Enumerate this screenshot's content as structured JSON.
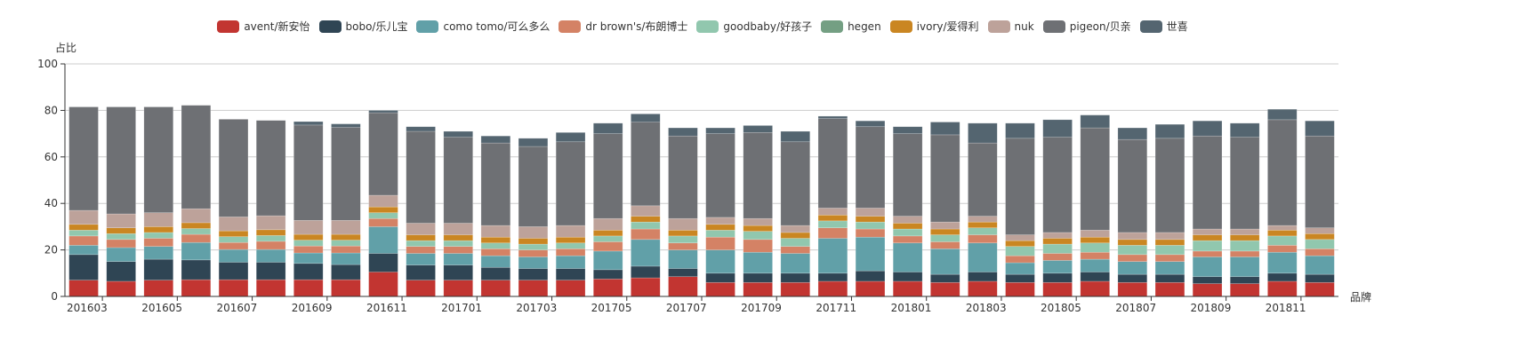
{
  "legend": [
    {
      "name": "avent/新安怡",
      "color": "#c23531"
    },
    {
      "name": "bobo/乐儿宝",
      "color": "#2f4554"
    },
    {
      "name": "como tomo/可么多么",
      "color": "#61a0a8"
    },
    {
      "name": "dr brown's/布朗博士",
      "color": "#d48265"
    },
    {
      "name": "goodbaby/好孩子",
      "color": "#91c7ae"
    },
    {
      "name": "hegen",
      "color": "#749f83"
    },
    {
      "name": "ivory/爱得利",
      "color": "#ca8622"
    },
    {
      "name": "nuk",
      "color": "#bda29a"
    },
    {
      "name": "pigeon/贝亲",
      "color": "#6e7074"
    },
    {
      "name": "世喜",
      "color": "#546570"
    }
  ],
  "chart_data": {
    "type": "bar",
    "stacked": true,
    "title": "",
    "xlabel": "品牌",
    "ylabel": "占比",
    "ylim": [
      0,
      100
    ],
    "yticks": [
      0,
      20,
      40,
      60,
      80,
      100
    ],
    "grid": true,
    "legend_position": "top",
    "xtick_labels_shown": [
      "201603",
      "201605",
      "201607",
      "201609",
      "201611",
      "201701",
      "201703",
      "201705",
      "201707",
      "201709",
      "201711",
      "201801",
      "201803",
      "201805",
      "201807",
      "201809",
      "201811"
    ],
    "categories": [
      "201603",
      "201604",
      "201605",
      "201606",
      "201607",
      "201608",
      "201609",
      "201610",
      "201611",
      "201612",
      "201701",
      "201702",
      "201703",
      "201704",
      "201705",
      "201706",
      "201707",
      "201708",
      "201709",
      "201710",
      "201711",
      "201712",
      "201801",
      "201802",
      "201803",
      "201804",
      "201805",
      "201806",
      "201807",
      "201808",
      "201809",
      "201810",
      "201811",
      "201812"
    ],
    "series": [
      {
        "name": "avent/新安怡",
        "values": [
          7,
          6.5,
          7,
          7.2,
          7.2,
          7.2,
          7.2,
          7.2,
          10.5,
          7,
          7,
          7,
          7,
          7,
          7.5,
          8,
          8.5,
          6,
          6,
          6,
          6.5,
          6.5,
          6.5,
          6,
          6.5,
          6,
          6,
          6.5,
          6,
          6,
          5.5,
          5.5,
          6.5,
          6
        ]
      },
      {
        "name": "bobo/乐儿宝",
        "values": [
          11,
          8.5,
          9,
          8.5,
          7.5,
          7.5,
          7,
          6.5,
          8,
          6.5,
          6.5,
          5.5,
          5,
          5,
          4,
          5,
          3.5,
          4,
          4,
          4,
          3.5,
          4.5,
          4,
          3.5,
          4,
          3.5,
          4,
          4,
          3.5,
          3.5,
          3,
          3,
          3.5,
          3.5
        ]
      },
      {
        "name": "como tomo/可么多么",
        "values": [
          4,
          6,
          5.5,
          7.5,
          5.5,
          5.5,
          4.5,
          5,
          11.5,
          5,
          5,
          5,
          5,
          5.5,
          8,
          11.5,
          8,
          10,
          9,
          8.5,
          15,
          14.5,
          12.5,
          11,
          12.5,
          5,
          5.5,
          5.5,
          5.5,
          5.5,
          8.5,
          8.5,
          9,
          8
        ]
      },
      {
        "name": "dr brown's/布朗博士",
        "values": [
          4,
          3.5,
          3.5,
          3.5,
          3,
          3.5,
          3,
          3,
          3.5,
          3,
          3,
          3,
          3,
          3,
          4,
          4.5,
          3,
          5.5,
          5.5,
          3,
          4.5,
          3.5,
          3,
          3,
          3.5,
          3,
          3,
          3,
          3,
          3,
          2.5,
          2.5,
          3,
          3
        ]
      },
      {
        "name": "goodbaby/好孩子",
        "values": [
          2.5,
          2.5,
          2.5,
          2.5,
          2.5,
          2.5,
          2.5,
          2.5,
          2.5,
          2.5,
          2.5,
          2.5,
          2.5,
          2.5,
          2.5,
          3,
          3,
          3,
          3.5,
          3.5,
          3,
          3,
          3,
          3,
          3,
          4,
          4,
          4,
          4,
          4,
          4.5,
          4.5,
          4,
          4
        ]
      },
      {
        "name": "hegen",
        "values": [
          0,
          0,
          0,
          0,
          0,
          0,
          0,
          0,
          0,
          0,
          0,
          0,
          0,
          0,
          0,
          0,
          0,
          0,
          0,
          0,
          0,
          0,
          0,
          0,
          0,
          0,
          0,
          0,
          0,
          0,
          0,
          0,
          0,
          0
        ]
      },
      {
        "name": "ivory/爱得利",
        "values": [
          2.5,
          2.5,
          2.5,
          2.5,
          2.5,
          2.5,
          2.5,
          2.5,
          2.5,
          2.5,
          2.5,
          2.5,
          2.5,
          2.5,
          2.5,
          2.5,
          2.5,
          2.5,
          2.5,
          2.5,
          2.5,
          2.5,
          2.5,
          2.5,
          2.5,
          2.5,
          2.5,
          2.5,
          2.5,
          2.5,
          2.5,
          2.5,
          2.5,
          2.5
        ]
      },
      {
        "name": "nuk",
        "values": [
          6,
          6,
          6,
          6,
          6,
          6,
          6,
          6,
          5,
          5,
          5,
          5,
          5,
          5,
          5,
          4.5,
          5,
          3,
          3,
          3,
          3,
          3.5,
          3,
          3,
          2.5,
          2.5,
          2.5,
          3,
          3,
          3,
          2.5,
          2.5,
          2,
          2.5
        ]
      },
      {
        "name": "pigeon/贝亲",
        "values": [
          44.5,
          46,
          45.5,
          44.5,
          42,
          41,
          41,
          40,
          35.5,
          39.5,
          37,
          35.5,
          34.5,
          36,
          36.5,
          36,
          35.5,
          36,
          37,
          36,
          38.5,
          35,
          35.5,
          37.5,
          31.5,
          41.5,
          41,
          44,
          40,
          40.5,
          40,
          39.5,
          45.5,
          39.5
        ]
      },
      {
        "name": "世喜",
        "values": [
          0,
          0,
          0,
          0,
          0,
          0,
          1.5,
          1.5,
          1,
          2,
          2.5,
          3,
          3.5,
          4,
          4.5,
          3.5,
          3.5,
          2.5,
          3,
          4.5,
          1,
          2.5,
          3,
          5.5,
          8.5,
          6.5,
          7.5,
          5.5,
          5,
          6,
          6.5,
          6,
          4.5,
          6.5
        ]
      }
    ]
  }
}
